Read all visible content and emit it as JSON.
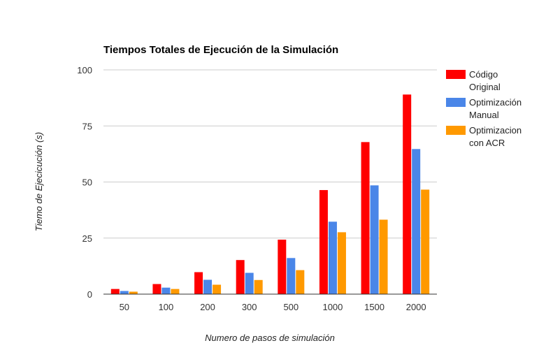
{
  "chart_data": {
    "type": "bar",
    "title": "Tiempos Totales de Ejecución de la Simulación",
    "xlabel": "Numero de pasos de simulación",
    "ylabel": "Tiemo de Ejecicución (s)",
    "categories": [
      "50",
      "100",
      "200",
      "300",
      "500",
      "1000",
      "1500",
      "2000"
    ],
    "ylim": [
      0,
      100
    ],
    "yticks": [
      "0",
      "25",
      "50",
      "75",
      "100"
    ],
    "grid": true,
    "legend_position": "right",
    "series": [
      {
        "name": [
          "Código",
          "Original"
        ],
        "color": "#ff0000",
        "values": [
          2.3,
          4.5,
          9.8,
          15.2,
          24.3,
          46.4,
          67.8,
          89.0
        ]
      },
      {
        "name": [
          "Optimización",
          "Manual"
        ],
        "color": "#4a86e8",
        "values": [
          1.4,
          2.9,
          6.4,
          9.5,
          16.1,
          32.3,
          48.5,
          64.7
        ]
      },
      {
        "name": [
          "Optimizacion",
          "con ACR"
        ],
        "color": "#ff9900",
        "values": [
          1.1,
          2.3,
          4.2,
          6.3,
          10.7,
          27.6,
          33.2,
          46.6
        ]
      }
    ]
  }
}
